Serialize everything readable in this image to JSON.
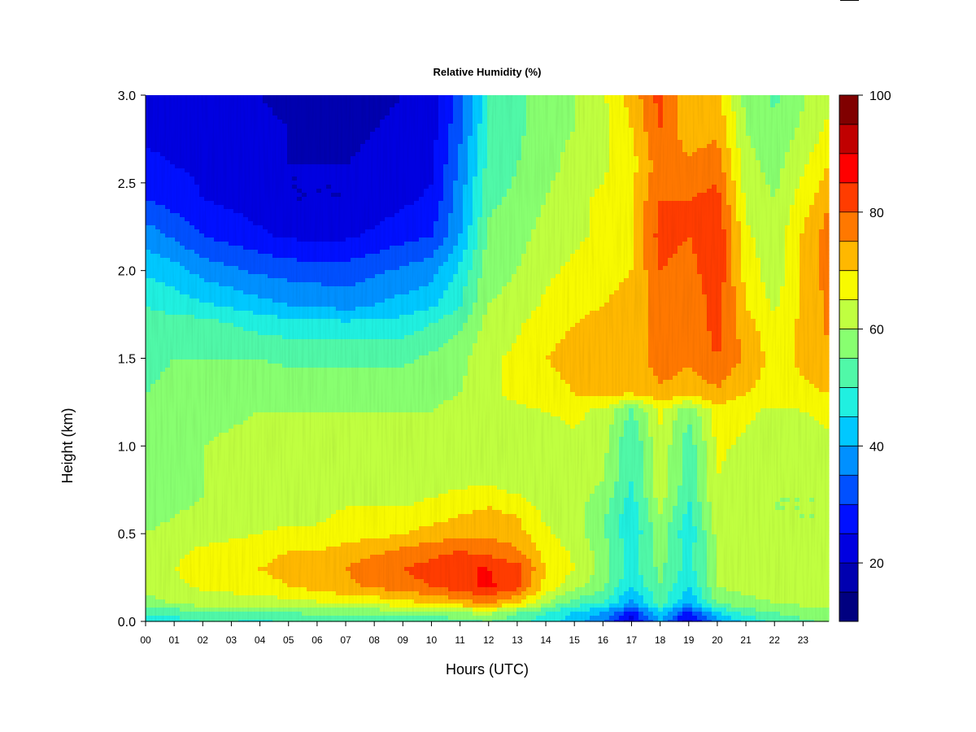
{
  "chart_data": {
    "type": "heatmap",
    "title": "Relative Humidity (%)",
    "xlabel": "Hours (UTC)",
    "ylabel": "Height (km)",
    "x_ticks": [
      "00",
      "01",
      "02",
      "03",
      "04",
      "05",
      "06",
      "07",
      "08",
      "09",
      "10",
      "11",
      "12",
      "13",
      "14",
      "15",
      "16",
      "17",
      "18",
      "19",
      "20",
      "21",
      "22",
      "23"
    ],
    "y_ticks": [
      0.0,
      0.5,
      1.0,
      1.5,
      2.0,
      2.5,
      3.0
    ],
    "y_tick_labels": [
      "0.0",
      "0.5",
      "1.0",
      "1.5",
      "2.0",
      "2.5",
      "3.0"
    ],
    "xlim": [
      0,
      23.9
    ],
    "ylim": [
      0,
      3
    ],
    "colorbar": {
      "levels": [
        10,
        15,
        20,
        25,
        30,
        35,
        40,
        45,
        50,
        55,
        60,
        65,
        70,
        75,
        80,
        85,
        90,
        95,
        100
      ],
      "colors": [
        "#000080",
        "#0000B0",
        "#0000E0",
        "#0010FF",
        "#0050FF",
        "#0090FF",
        "#00C8FF",
        "#20F0E0",
        "#50F8A8",
        "#88FF70",
        "#C0FF40",
        "#F8FA00",
        "#FFB800",
        "#FF7800",
        "#FF3C00",
        "#FF0000",
        "#C00000",
        "#800000"
      ],
      "tick_values": [
        20,
        40,
        60,
        80,
        100
      ],
      "tick_labels": [
        "20",
        "40",
        "60",
        "80",
        "100"
      ]
    },
    "heights_km": [
      0.0,
      0.05,
      0.1,
      0.2,
      0.3,
      0.4,
      0.5,
      0.6,
      0.7,
      0.8,
      1.0,
      1.2,
      1.3,
      1.5,
      1.7,
      1.8,
      2.0,
      2.2,
      2.4,
      2.6,
      2.8,
      3.0
    ],
    "hours_utc": [
      0,
      1,
      2,
      3,
      4,
      5,
      6,
      7,
      8,
      9,
      10,
      11,
      12,
      13,
      14,
      15,
      16,
      17,
      18,
      19,
      20,
      21,
      22,
      23.9
    ],
    "values_rh_percent": [
      [
        46,
        48,
        50,
        50,
        48,
        52,
        52,
        52,
        52,
        52,
        52,
        52,
        55,
        52,
        48,
        42,
        35,
        22,
        40,
        22,
        38,
        46,
        52,
        56
      ],
      [
        52,
        52,
        54,
        55,
        55,
        55,
        56,
        56,
        56,
        58,
        58,
        60,
        62,
        55,
        50,
        45,
        40,
        28,
        45,
        28,
        45,
        52,
        55,
        58
      ],
      [
        58,
        60,
        62,
        62,
        62,
        63,
        64,
        66,
        66,
        68,
        70,
        72,
        75,
        70,
        60,
        52,
        50,
        38,
        52,
        40,
        55,
        58,
        60,
        62
      ],
      [
        62,
        64,
        66,
        67,
        68,
        70,
        72,
        74,
        76,
        78,
        80,
        83,
        86,
        82,
        68,
        62,
        56,
        45,
        55,
        45,
        60,
        62,
        62,
        63
      ],
      [
        63,
        65,
        67,
        68,
        70,
        72,
        73,
        75,
        78,
        80,
        82,
        85,
        85,
        82,
        70,
        65,
        58,
        48,
        56,
        48,
        60,
        62,
        62,
        63
      ],
      [
        62,
        64,
        66,
        67,
        68,
        70,
        70,
        72,
        74,
        76,
        78,
        80,
        78,
        76,
        68,
        64,
        58,
        48,
        58,
        48,
        60,
        62,
        62,
        62
      ],
      [
        60,
        62,
        63,
        64,
        65,
        66,
        66,
        68,
        68,
        70,
        72,
        74,
        74,
        72,
        66,
        62,
        56,
        46,
        58,
        46,
        62,
        62,
        61,
        61
      ],
      [
        58,
        60,
        61,
        62,
        63,
        64,
        64,
        66,
        66,
        66,
        68,
        70,
        72,
        70,
        64,
        62,
        56,
        46,
        60,
        48,
        64,
        62,
        60,
        60
      ],
      [
        58,
        59,
        60,
        61,
        62,
        63,
        63,
        64,
        64,
        64,
        65,
        66,
        68,
        66,
        63,
        62,
        58,
        48,
        62,
        50,
        64,
        62,
        60,
        60
      ],
      [
        58,
        59,
        60,
        61,
        62,
        63,
        63,
        63,
        63,
        63,
        64,
        64,
        64,
        62,
        62,
        62,
        60,
        50,
        64,
        52,
        65,
        62,
        60,
        62
      ],
      [
        57,
        58,
        60,
        61,
        62,
        62,
        62,
        62,
        62,
        62,
        62,
        62,
        62,
        62,
        63,
        64,
        62,
        50,
        64,
        52,
        66,
        64,
        62,
        64
      ],
      [
        56,
        57,
        58,
        59,
        60,
        60,
        60,
        60,
        60,
        60,
        60,
        62,
        64,
        64,
        65,
        66,
        64,
        54,
        66,
        56,
        68,
        66,
        64,
        66
      ],
      [
        55,
        56,
        57,
        58,
        58,
        58,
        58,
        58,
        58,
        58,
        58,
        60,
        64,
        66,
        68,
        70,
        72,
        70,
        74,
        72,
        74,
        70,
        68,
        70
      ],
      [
        54,
        55,
        55,
        55,
        55,
        54,
        54,
        54,
        54,
        54,
        56,
        58,
        64,
        66,
        70,
        72,
        74,
        72,
        78,
        76,
        80,
        74,
        68,
        74
      ],
      [
        52,
        52,
        52,
        50,
        48,
        47,
        46,
        46,
        46,
        47,
        50,
        54,
        62,
        64,
        68,
        70,
        72,
        72,
        78,
        76,
        82,
        72,
        66,
        76
      ],
      [
        50,
        48,
        46,
        44,
        42,
        40,
        40,
        38,
        40,
        42,
        44,
        50,
        60,
        62,
        66,
        68,
        70,
        72,
        78,
        76,
        82,
        70,
        64,
        76
      ],
      [
        44,
        42,
        38,
        36,
        34,
        33,
        32,
        32,
        34,
        36,
        38,
        46,
        58,
        60,
        64,
        66,
        68,
        70,
        80,
        78,
        84,
        68,
        62,
        78
      ],
      [
        38,
        34,
        30,
        28,
        26,
        24,
        24,
        24,
        26,
        28,
        30,
        40,
        56,
        58,
        62,
        64,
        66,
        70,
        82,
        80,
        85,
        66,
        62,
        78
      ],
      [
        30,
        28,
        25,
        24,
        22,
        20,
        20,
        20,
        22,
        24,
        26,
        38,
        54,
        56,
        60,
        64,
        66,
        70,
        80,
        80,
        82,
        64,
        60,
        74
      ],
      [
        26,
        25,
        24,
        23,
        22,
        20,
        20,
        20,
        21,
        22,
        24,
        36,
        52,
        55,
        58,
        62,
        64,
        68,
        78,
        76,
        78,
        62,
        58,
        70
      ],
      [
        24,
        24,
        23,
        22,
        21,
        20,
        19,
        19,
        20,
        21,
        23,
        34,
        50,
        54,
        58,
        60,
        64,
        70,
        80,
        72,
        74,
        60,
        56,
        66
      ],
      [
        22,
        22,
        22,
        21,
        20,
        19,
        18,
        18,
        19,
        20,
        22,
        32,
        50,
        54,
        58,
        60,
        64,
        72,
        82,
        70,
        72,
        58,
        54,
        64
      ]
    ]
  }
}
